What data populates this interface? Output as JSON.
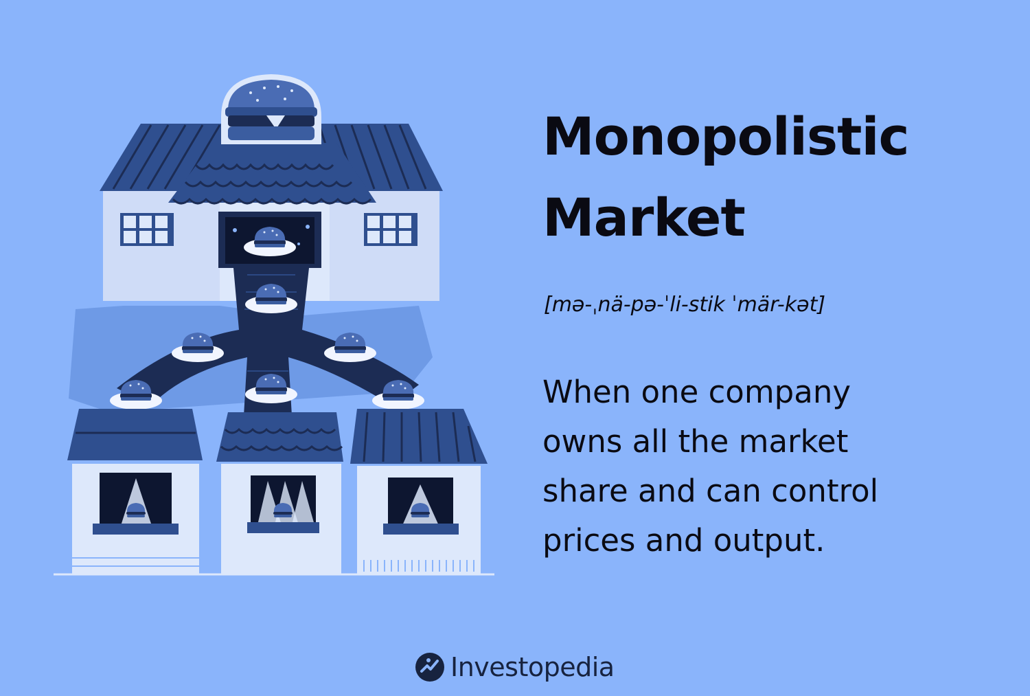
{
  "title_lines": [
    "Monopolistic",
    "Market"
  ],
  "pronunciation": "[mə-ˌnä-pə-ˈli-stik ˈmär-kət]",
  "definition_lines": [
    "When one company",
    "owns all the market",
    "share and can control",
    "prices and output."
  ],
  "brand": {
    "name": "Investopedia",
    "logo_icon": "investopedia-logo-icon"
  },
  "colors": {
    "background": "#8ab4fb",
    "roof": "#2f4f8f",
    "wall": "#dde8fb",
    "dark_navy": "#1c2c54",
    "text": "#0a0a12"
  }
}
